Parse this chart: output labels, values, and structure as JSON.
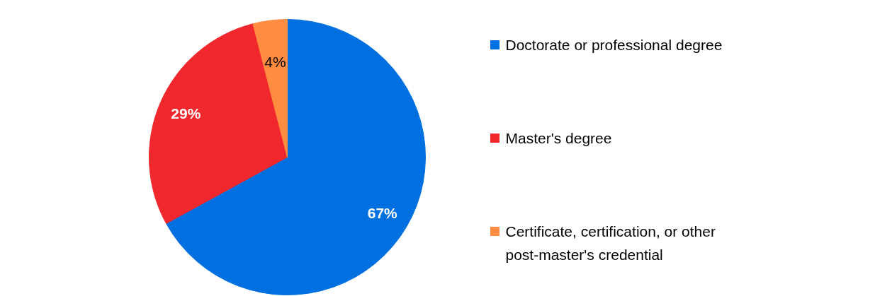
{
  "chart_data": {
    "type": "pie",
    "categories": [
      "Doctorate or professional degree",
      "Master's degree",
      "Certificate, certification, or other post-master's credential"
    ],
    "values": [
      67,
      29,
      4
    ],
    "colors": [
      "#0070e0",
      "#f0282d",
      "#ff8c40"
    ],
    "value_labels": [
      "67%",
      "29%",
      "4%"
    ],
    "legend": "right"
  }
}
